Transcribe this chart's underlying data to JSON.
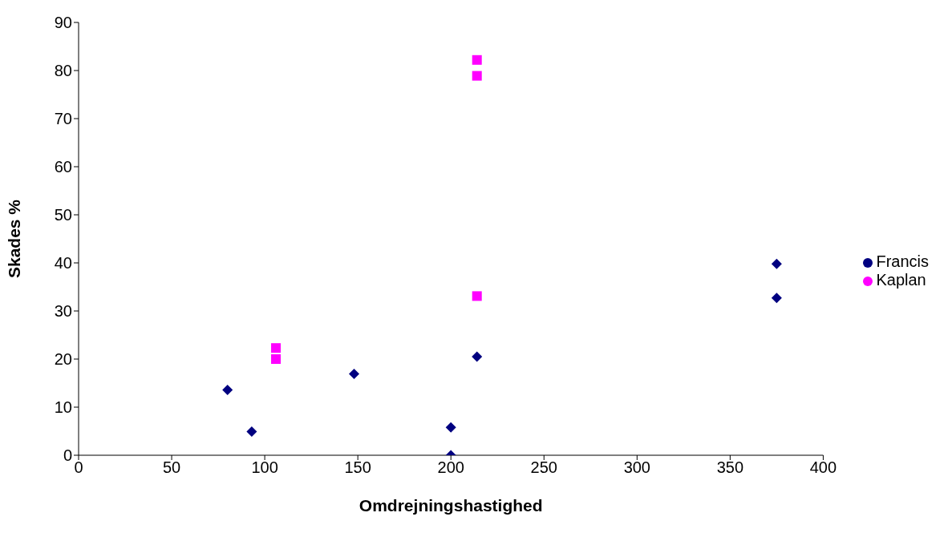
{
  "chart_data": {
    "type": "scatter",
    "xlabel": "Omdrejningshastighed",
    "ylabel": "Skades %",
    "xlim": [
      0,
      400
    ],
    "xticks": [
      0,
      50,
      100,
      150,
      200,
      250,
      300,
      350,
      400
    ],
    "ylim": [
      0,
      90
    ],
    "yticks": [
      0,
      10,
      20,
      30,
      40,
      50,
      60,
      70,
      80,
      90
    ],
    "grid": false,
    "legend": "right",
    "series": [
      {
        "name": "Francis",
        "color": "#000080",
        "marker": "diamond",
        "x": [
          80,
          93,
          148,
          200,
          200,
          214,
          375,
          375
        ],
        "values": [
          13.6,
          4.9,
          16.9,
          5.8,
          0,
          20.5,
          39.8,
          32.7
        ]
      },
      {
        "name": "Kaplan",
        "color": "#ff00ff",
        "marker": "square",
        "x": [
          106,
          106,
          214,
          214,
          214
        ],
        "values": [
          22.3,
          20.0,
          33.1,
          82.2,
          78.9
        ]
      }
    ]
  }
}
